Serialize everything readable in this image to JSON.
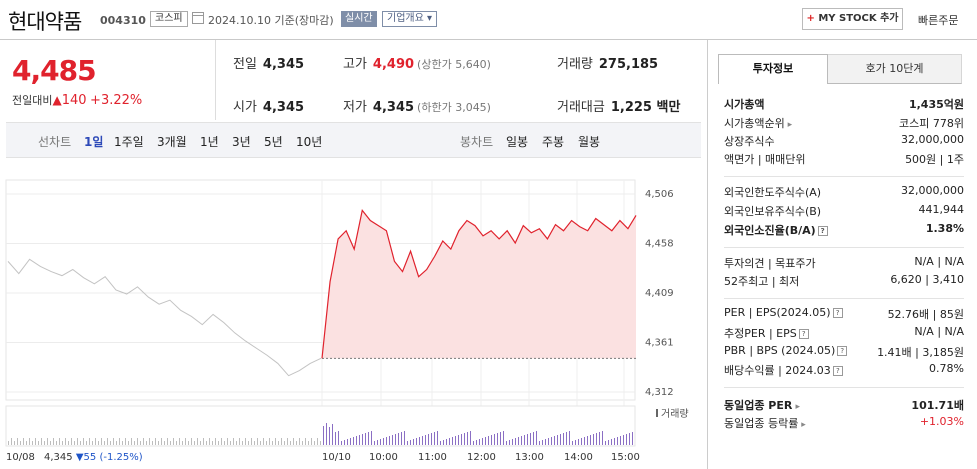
{
  "header": {
    "name": "현대약품",
    "code": "004310",
    "market": "코스피",
    "date": "2024.10.10 기준(장마감)",
    "realtime": "실시간",
    "company_info": "기업개요",
    "mystock_plus": "+",
    "mystock": "MY STOCK 추가",
    "quick_order": "빠른주문"
  },
  "summary": {
    "price": "4,485",
    "change_label": "전일대비",
    "change_arrow": "▲",
    "change_value": "140",
    "change_pct": "+3.22%",
    "prev_label": "전일",
    "prev": "4,345",
    "high_label": "고가",
    "high": "4,490",
    "upper_limit": "(상한가 5,640)",
    "volume_label": "거래량",
    "volume": "275,185",
    "open_label": "시가",
    "open": "4,345",
    "low_label": "저가",
    "low": "4,345",
    "lower_limit": "(하한가 3,045)",
    "amount_label": "거래대금",
    "amount": "1,225 백만"
  },
  "periods": {
    "line_label": "선차트",
    "line_items": [
      "1일",
      "1주일",
      "3개월",
      "1년",
      "3년",
      "5년",
      "10년"
    ],
    "selected": "1일",
    "candle_label": "봉차트",
    "candle_items": [
      "일봉",
      "주봉",
      "월봉"
    ]
  },
  "chart_data": {
    "type": "line",
    "y_ticks": [
      "4,506",
      "4,458",
      "4,409",
      "4,361",
      "4,312"
    ],
    "ylim": [
      4312,
      4506
    ],
    "x_ticks": [
      "10/08",
      "10/10",
      "10:00",
      "11:00",
      "12:00",
      "13:00",
      "14:00",
      "15:00"
    ],
    "prev_close": 4345,
    "volume_label": "거래량",
    "series": [
      {
        "values": [
          4440,
          4428,
          4442,
          4435,
          4430,
          4426,
          4432,
          4424,
          4418,
          4425,
          4412,
          4408,
          4415,
          4405,
          4398,
          4402,
          4392,
          4386,
          4378,
          4388,
          4380,
          4370,
          4362,
          4355,
          4348,
          4340,
          4328,
          4333,
          4340,
          4345
        ]
      },
      {
        "values": [
          4345,
          4420,
          4462,
          4470,
          4452,
          4490,
          4480,
          4475,
          4470,
          4440,
          4430,
          4450,
          4425,
          4432,
          4445,
          4460,
          4452,
          4470,
          4480,
          4475,
          4465,
          4470,
          4462,
          4470,
          4458,
          4475,
          4468,
          4472,
          4462,
          4476,
          4470,
          4480,
          4474,
          4470,
          4482,
          4476,
          4470,
          4480,
          4472,
          4485
        ]
      }
    ]
  },
  "footer": {
    "left": "10/08",
    "price": "4,345",
    "change_arrow": "▼",
    "change": "55",
    "pct": "(-1.25%)"
  },
  "panel": {
    "tab1": "투자정보",
    "tab2": "호가 10단계",
    "rows": [
      {
        "k": "시가총액",
        "v": "1,435억원",
        "bold": true
      },
      {
        "k": "시가총액순위",
        "v": "코스피 778위",
        "arrow": true
      },
      {
        "k": "상장주식수",
        "v": "32,000,000"
      },
      {
        "k": "액면가 | 매매단위",
        "v": "500원 | 1주"
      },
      {
        "k": "외국인한도주식수(A)",
        "v": "32,000,000"
      },
      {
        "k": "외국인보유주식수(B)",
        "v": "441,944"
      },
      {
        "k": "외국인소진율(B/A)",
        "v": "1.38%",
        "bold": true,
        "q": true
      },
      {
        "k": "투자의견 | 목표주가",
        "v": "N/A | N/A"
      },
      {
        "k": "52주최고 | 최저",
        "v": "6,620 | 3,410"
      },
      {
        "k": "PER | EPS(2024.05)",
        "v": "52.76배 | 85원",
        "q": true
      },
      {
        "k": "추정PER | EPS",
        "v": "N/A | N/A",
        "q": true
      },
      {
        "k": "PBR | BPS (2024.05)",
        "v": "1.41배 | 3,185원",
        "q": true
      },
      {
        "k": "배당수익률 | 2024.03",
        "v": "0.78%",
        "q": true
      },
      {
        "k": "동일업종 PER",
        "v": "101.71배",
        "bold": true,
        "arrow": true
      },
      {
        "k": "동일업종 등락률",
        "v": "+1.03%",
        "red": true,
        "arrow": true
      }
    ]
  }
}
